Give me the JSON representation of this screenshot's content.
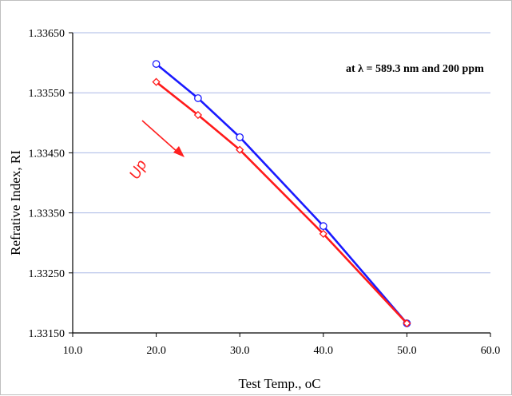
{
  "chart_data": {
    "type": "line",
    "xlabel": "Test Temp., ",
    "xlabel_unit": "oC",
    "ylabel": "Refrative Index, RI",
    "xlim": [
      10.0,
      60.0
    ],
    "ylim": [
      1.3315,
      1.3365
    ],
    "xticks": [
      "10.0",
      "20.0",
      "30.0",
      "40.0",
      "50.0",
      "60.0"
    ],
    "yticks": [
      "1.33150",
      "1.33250",
      "1.33350",
      "1.33450",
      "1.33550",
      "1.33650"
    ],
    "grid": "horizontal",
    "annotation": "at λ = 589.3 nm and 200 ppm",
    "arrow_label": "Up",
    "series": [
      {
        "color": "#1a1aff",
        "marker": "circle",
        "x": [
          20.0,
          25.0,
          30.0,
          40.0,
          50.0
        ],
        "y": [
          1.33598,
          1.33541,
          1.33476,
          1.33328,
          1.33166
        ]
      },
      {
        "color": "#ff1a1a",
        "marker": "diamond",
        "x": [
          20.0,
          25.0,
          30.0,
          40.0,
          50.0
        ],
        "y": [
          1.33568,
          1.33513,
          1.33455,
          1.33315,
          1.33166
        ]
      }
    ]
  }
}
